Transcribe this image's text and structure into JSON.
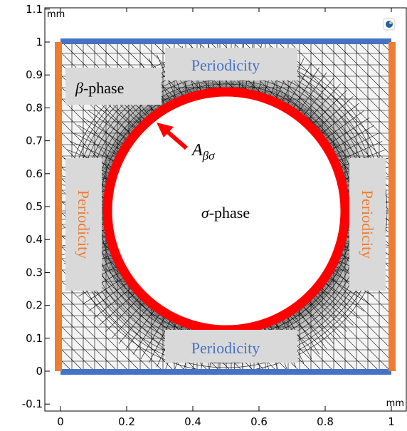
{
  "axes": {
    "x_unit": "mm",
    "y_unit": "mm",
    "x_ticks": [
      "0",
      "0.2",
      "0.4",
      "0.6",
      "0.8",
      "1"
    ],
    "y_ticks": [
      "-0.1",
      "0",
      "0.1",
      "0.2",
      "0.3",
      "0.4",
      "0.5",
      "0.6",
      "0.7",
      "0.8",
      "0.9",
      "1",
      "1.1"
    ]
  },
  "labels": {
    "periodicity_top": "Periodicity",
    "periodicity_bottom": "Periodicity",
    "periodicity_left": "Periodicity",
    "periodicity_right": "Periodicity",
    "beta_symbol": "β",
    "beta_suffix": "-phase",
    "sigma_symbol": "σ",
    "sigma_suffix": "-phase",
    "interface_symbol": "A",
    "interface_subscript": "βσ"
  },
  "colors": {
    "periodicity_horizontal": "#4472c4",
    "periodicity_vertical": "#ed7d31",
    "interface": "#ff0000",
    "label_box": "#d9d9d9",
    "mesh": "#000000"
  },
  "icons": {
    "corner": "comsol-logo-icon"
  }
}
